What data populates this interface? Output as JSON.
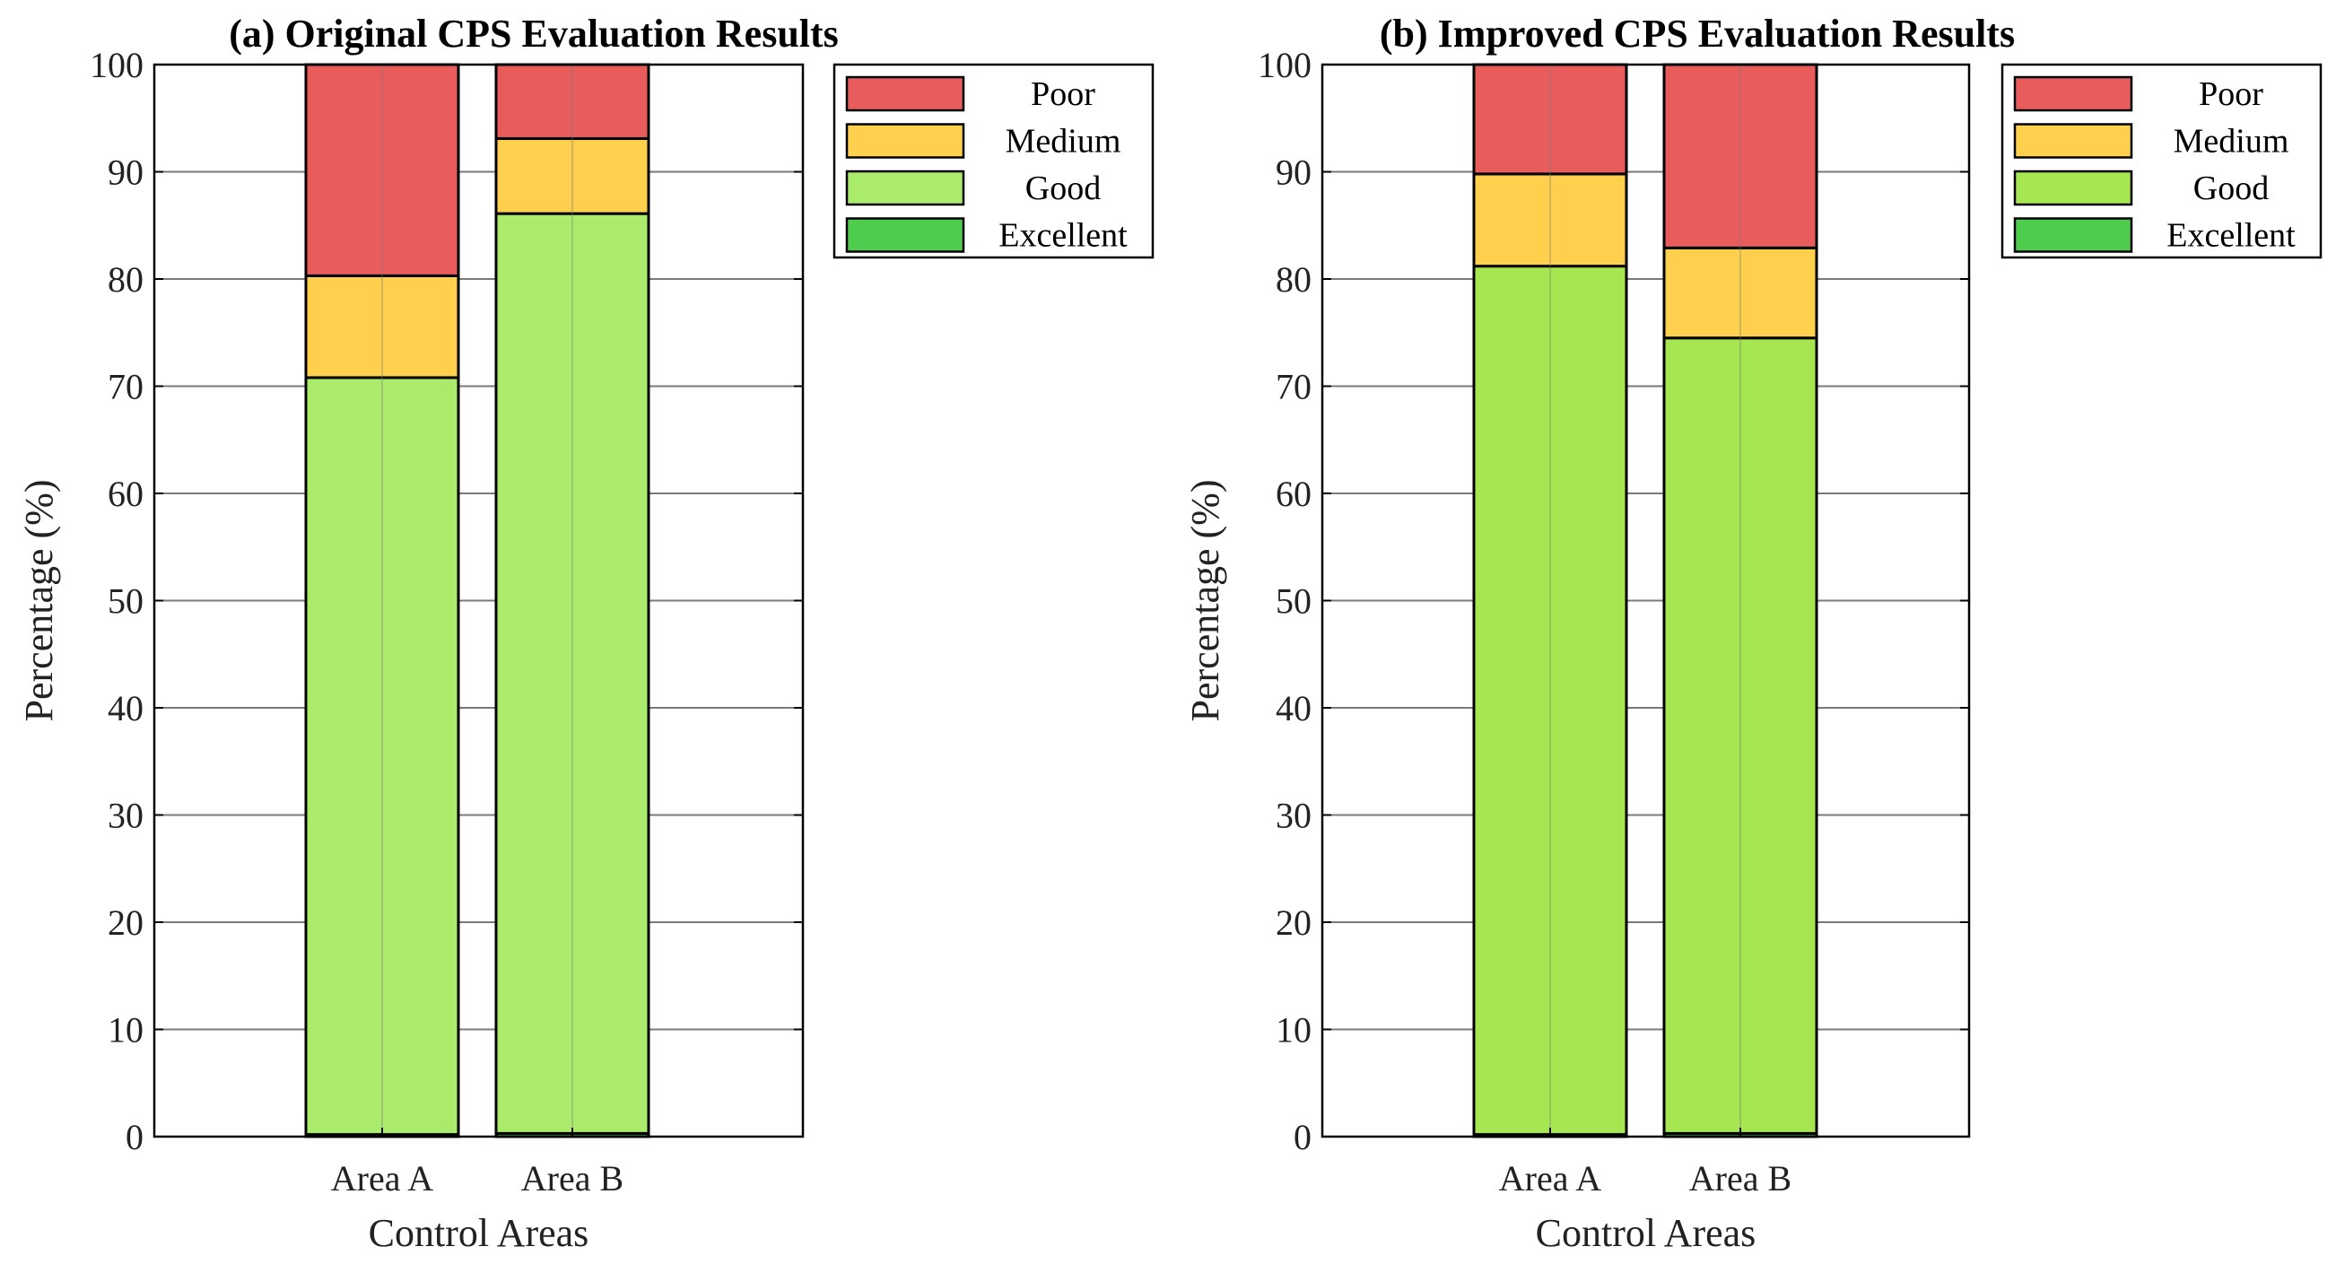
{
  "chart_data": [
    {
      "type": "bar",
      "stacked": true,
      "title": "(a) Original CPS Evaluation Results",
      "xlabel": "Control Areas",
      "ylabel": "Percentage (%)",
      "ylim": [
        0,
        100
      ],
      "yticks": [
        0,
        10,
        20,
        30,
        40,
        50,
        60,
        70,
        80,
        90,
        100
      ],
      "grid": true,
      "legend_position": "outside-right-top",
      "categories": [
        "Area A",
        "Area B"
      ],
      "series": [
        {
          "name": "Excellent",
          "color": "#4dcc4d",
          "values": [
            0.2,
            0.3
          ]
        },
        {
          "name": "Good",
          "color": "#aaeb6c",
          "values": [
            70.6,
            85.8
          ]
        },
        {
          "name": "Medium",
          "color": "#ffd04d",
          "values": [
            9.5,
            7.0
          ]
        },
        {
          "name": "Poor",
          "color": "#e85c5c",
          "values": [
            19.7,
            6.9
          ]
        }
      ]
    },
    {
      "type": "bar",
      "stacked": true,
      "title": "(b) Improved CPS Evaluation Results",
      "xlabel": "Control Areas",
      "ylabel": "Percentage (%)",
      "ylim": [
        0,
        100
      ],
      "yticks": [
        0,
        10,
        20,
        30,
        40,
        50,
        60,
        70,
        80,
        90,
        100
      ],
      "grid": true,
      "legend_position": "outside-right-top",
      "categories": [
        "Area A",
        "Area B"
      ],
      "series": [
        {
          "name": "Excellent",
          "color": "#4dcc4d",
          "values": [
            0.2,
            0.3
          ]
        },
        {
          "name": "Good",
          "color": "#a5e651",
          "values": [
            81.0,
            74.2
          ]
        },
        {
          "name": "Medium",
          "color": "#ffd04d",
          "values": [
            8.6,
            8.4
          ]
        },
        {
          "name": "Poor",
          "color": "#e85c5c",
          "values": [
            10.2,
            17.1
          ]
        }
      ]
    }
  ]
}
